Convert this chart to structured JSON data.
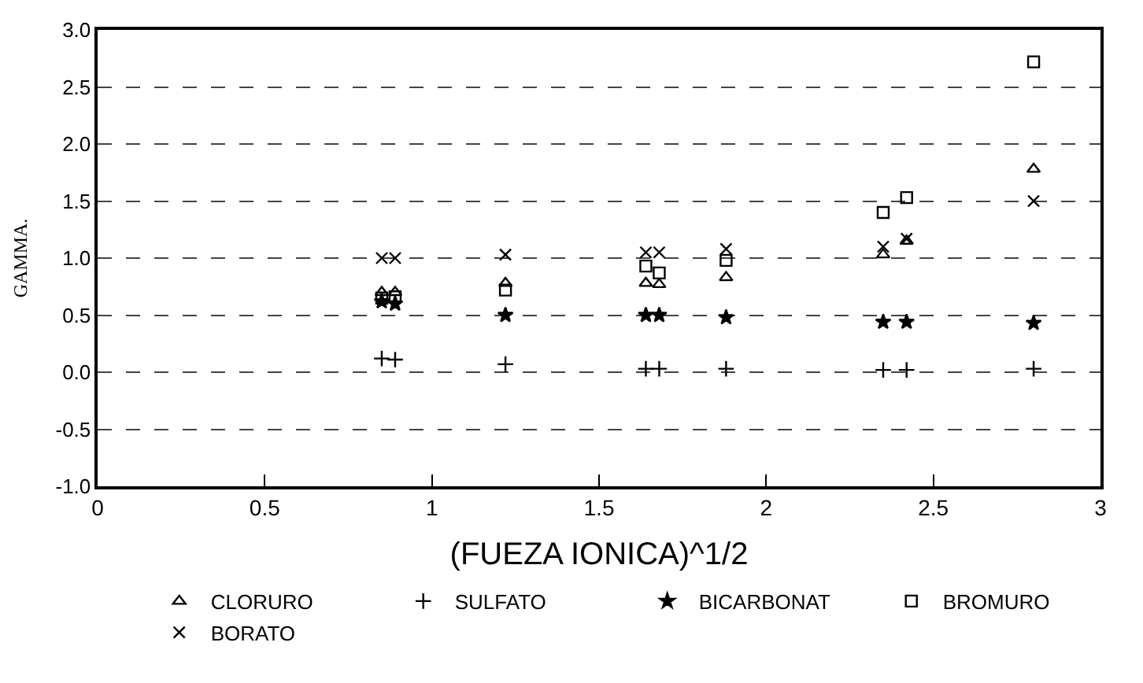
{
  "chart_data": {
    "type": "scatter",
    "xlabel": "(FUEZA IONICA)^1/2",
    "ylabel": "GAMMA.",
    "xlim": [
      0,
      3
    ],
    "xticks": [
      0,
      0.5,
      1,
      1.5,
      2,
      2.5,
      3
    ],
    "ylim": [
      -1,
      3
    ],
    "yticks": [
      {
        "value": -1,
        "label": "-1.0"
      },
      -0.5,
      {
        "value": 0,
        "label": "0.0"
      },
      0.5,
      {
        "value": 1,
        "label": "1.0"
      },
      1.5,
      {
        "value": 2,
        "label": "2.0"
      },
      2.5,
      {
        "value": 3,
        "label": "3.0"
      }
    ],
    "grid": "y",
    "legend": "bottom",
    "x": [
      0.85,
      0.89,
      1.22,
      1.64,
      1.68,
      1.88,
      2.35,
      2.42,
      2.8
    ],
    "series": [
      {
        "name": "CLORURO",
        "color": "#000000",
        "marker": "triangle",
        "values": [
          0.7,
          0.7,
          0.78,
          0.78,
          0.77,
          0.83,
          1.03,
          1.15,
          1.78
        ]
      },
      {
        "name": "SULFATO",
        "color": "#000000",
        "marker": "cross",
        "values": [
          0.12,
          0.11,
          0.07,
          0.03,
          0.03,
          0.03,
          0.02,
          0.02,
          0.03
        ]
      },
      {
        "name": "BICARBONAT",
        "color": "#000000",
        "marker": "star",
        "values": [
          0.62,
          0.6,
          0.5,
          0.5,
          0.5,
          0.48,
          0.44,
          0.44,
          0.43
        ]
      },
      {
        "name": "BROMURO",
        "color": "#000000",
        "marker": "square",
        "values": [
          0.65,
          0.66,
          0.72,
          0.93,
          0.87,
          0.98,
          1.4,
          1.53,
          2.72
        ]
      },
      {
        "name": "BORATO",
        "color": "#000000",
        "marker": "x",
        "values": [
          1.0,
          1.0,
          1.03,
          1.05,
          1.05,
          1.08,
          1.1,
          1.17,
          1.5
        ]
      }
    ]
  }
}
